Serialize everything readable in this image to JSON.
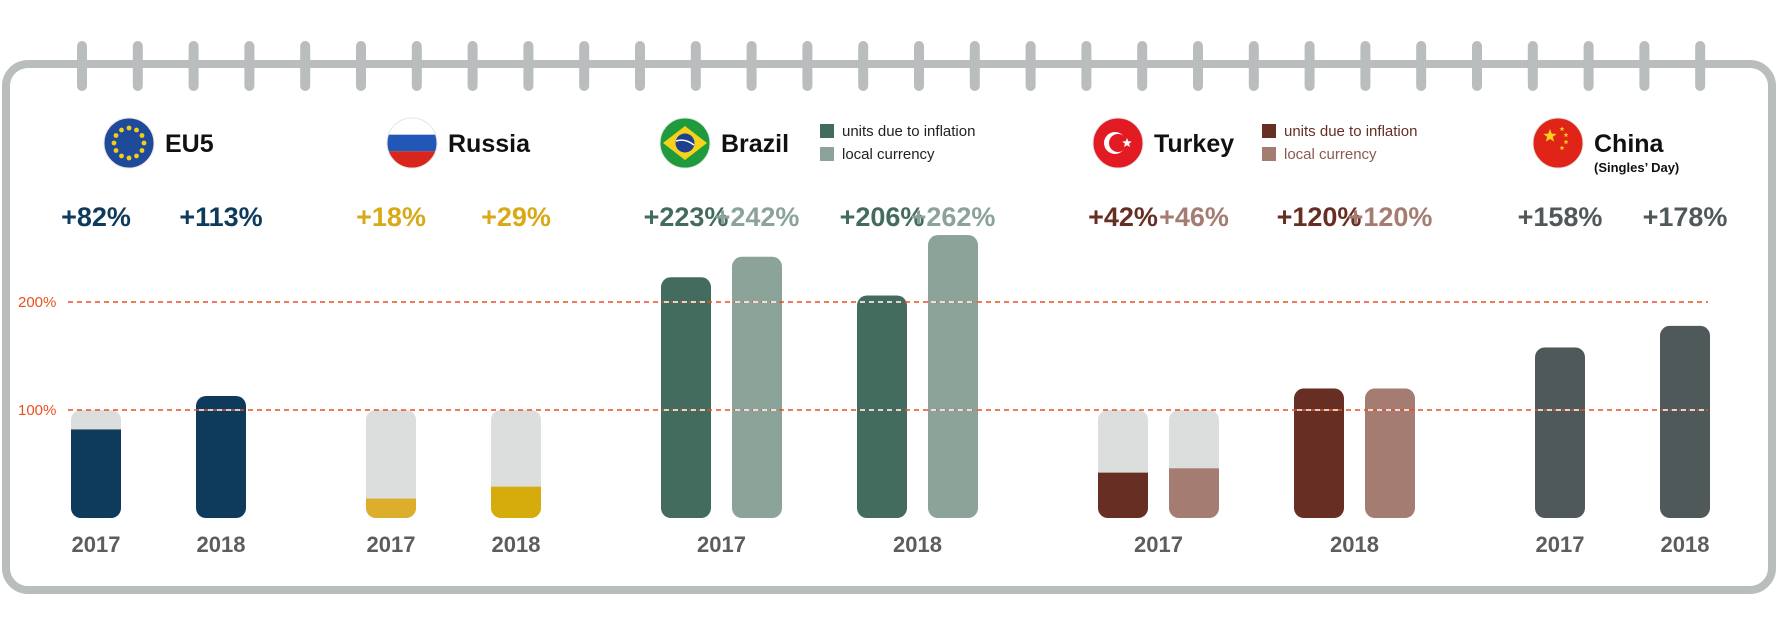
{
  "colors": {
    "frame": "#b9bdbe",
    "track": "#dcdddd",
    "gridline": "#e8501f",
    "text_dark": "#111111",
    "year_text": "#5d5d5d"
  },
  "chart_data": {
    "type": "bar",
    "ylim": [
      0,
      250
    ],
    "reference_lines": [
      {
        "value": 100,
        "label": "100%"
      },
      {
        "value": 200,
        "label": "200%"
      }
    ],
    "groups": [
      {
        "name": "EU5",
        "flag": "eu-flag",
        "subtitle": "",
        "legend": [],
        "bars": [
          {
            "year": "2017",
            "value": 82,
            "label": "+82%",
            "color": "#0e3a5c",
            "label_color": "#0e3a5c",
            "track": true
          },
          {
            "year": "2018",
            "value": 113,
            "label": "+113%",
            "color": "#0e3a5c",
            "label_color": "#0e3a5c",
            "track": false
          }
        ]
      },
      {
        "name": "Russia",
        "flag": "russia-flag",
        "subtitle": "",
        "legend": [],
        "bars": [
          {
            "year": "2017",
            "value": 18,
            "label": "+18%",
            "color": "#dcae2c",
            "label_color": "#d8aa18",
            "track": true
          },
          {
            "year": "2018",
            "value": 29,
            "label": "+29%",
            "color": "#d6ab0c",
            "label_color": "#d8aa18",
            "track": true
          }
        ]
      },
      {
        "name": "Brazil",
        "flag": "brazil-flag",
        "subtitle": "",
        "legend": [
          {
            "label": "units due to inflation",
            "color": "#436b5e",
            "text_color": "#222222"
          },
          {
            "label": "local currency",
            "color": "#8ca399",
            "text_color": "#222222"
          }
        ],
        "bars": [
          {
            "year": "2017",
            "value": 223,
            "label": "+223%",
            "color": "#436b5e",
            "label_color": "#436b5e",
            "track": false
          },
          {
            "year": "2017",
            "value": 242,
            "label": "+242%",
            "color": "#8ca399",
            "label_color": "#8ca399",
            "track": false
          },
          {
            "year": "2018",
            "value": 206,
            "label": "+206%",
            "color": "#436b5e",
            "label_color": "#436b5e",
            "track": false
          },
          {
            "year": "2018",
            "value": 262,
            "label": "+262%",
            "color": "#8ca399",
            "label_color": "#8ca399",
            "track": false
          }
        ]
      },
      {
        "name": "Turkey",
        "flag": "turkey-flag",
        "subtitle": "",
        "legend": [
          {
            "label": "units due to inflation",
            "color": "#672e24",
            "text_color": "#672e24"
          },
          {
            "label": "local currency",
            "color": "#a47c72",
            "text_color": "#8a5a50"
          }
        ],
        "bars": [
          {
            "year": "2017",
            "value": 42,
            "label": "+42%",
            "color": "#672e24",
            "label_color": "#672e24",
            "track": true
          },
          {
            "year": "2017",
            "value": 46,
            "label": "+46%",
            "color": "#a47c72",
            "label_color": "#a47c72",
            "track": true
          },
          {
            "year": "2018",
            "value": 120,
            "label": "+120%",
            "color": "#672e24",
            "label_color": "#672e24",
            "track": false
          },
          {
            "year": "2018",
            "value": 120,
            "label": "+120%",
            "color": "#a47c72",
            "label_color": "#a47c72",
            "track": false
          }
        ]
      },
      {
        "name": "China",
        "flag": "china-flag",
        "subtitle": "(Singles’ Day)",
        "legend": [],
        "bars": [
          {
            "year": "2017",
            "value": 158,
            "label": "+158%",
            "color": "#50595a",
            "label_color": "#50595a",
            "track": false
          },
          {
            "year": "2018",
            "value": 178,
            "label": "+178%",
            "color": "#50595a",
            "label_color": "#50595a",
            "track": false
          }
        ]
      }
    ]
  }
}
